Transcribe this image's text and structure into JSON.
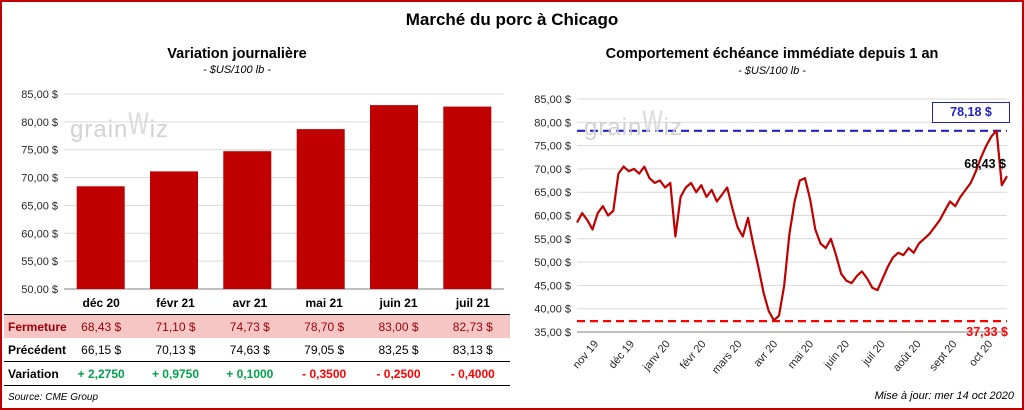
{
  "page": {
    "title": "Marché du porc à Chicago",
    "source": "Source: CME Group",
    "updated": "Mise à jour: mer 14 oct 2020"
  },
  "colors": {
    "brand_red": "#C00000",
    "grid": "#D9D9D9",
    "axis": "#7F7F7F",
    "high_ref_blue": "#2222CC",
    "low_ref_red": "#FF0000",
    "close_row_bg": "#F6C6C5",
    "close_row_text": "#9C0006",
    "positive_green": "#00A14B",
    "negative_red": "#FF0000"
  },
  "watermark": {
    "pre": "grain",
    "mark": "w",
    "post": "iz"
  },
  "chart_data": [
    {
      "type": "bar",
      "title": "Variation  journalière",
      "subtitle": "- $US/100 lb -",
      "categories": [
        "déc 20",
        "févr 21",
        "avr 21",
        "mai 21",
        "juin 21",
        "juil 21"
      ],
      "values": [
        68.43,
        71.1,
        74.73,
        78.7,
        83.0,
        82.73
      ],
      "ylim": [
        50,
        85
      ],
      "ytick_step": 5,
      "ytick_labels": [
        "85,00 $",
        "80,00 $",
        "75,00 $",
        "70,00 $",
        "65,00 $",
        "60,00 $",
        "55,00 $",
        "50,00 $"
      ],
      "bar_color": "#C00000",
      "grid": true,
      "legend": "none"
    },
    {
      "type": "line",
      "title": "Comportement  échéance  immédiate  depuis 1 an",
      "subtitle": "- $US/100 lb -",
      "x_labels": [
        "nov 19",
        "déc 19",
        "janv 20",
        "févr 20",
        "mars 20",
        "avr 20",
        "mai 20",
        "juin 20",
        "juil 20",
        "août 20",
        "sept 20",
        "oct 20"
      ],
      "points_per_month": 7,
      "values": [
        58.5,
        60.5,
        59.0,
        57.0,
        60.5,
        62.0,
        60.0,
        61.0,
        69.0,
        70.5,
        69.5,
        70.0,
        69.0,
        70.5,
        68.0,
        67.0,
        67.5,
        66.0,
        67.0,
        55.5,
        64.0,
        66.0,
        67.0,
        65.0,
        66.5,
        64.0,
        65.5,
        63.0,
        64.5,
        66.0,
        61.5,
        57.5,
        55.5,
        59.5,
        54.0,
        49.0,
        43.5,
        39.5,
        37.5,
        38.5,
        45.0,
        56.0,
        63.0,
        67.5,
        68.0,
        63.5,
        57.0,
        54.0,
        53.0,
        55.0,
        51.5,
        47.5,
        46.0,
        45.5,
        47.0,
        48.0,
        46.5,
        44.5,
        44.0,
        46.5,
        49.0,
        51.0,
        52.0,
        51.5,
        53.0,
        52.0,
        54.0,
        55.0,
        56.0,
        57.5,
        59.0,
        61.0,
        63.0,
        62.0,
        64.0,
        65.5,
        67.0,
        69.5,
        72.5,
        75.0,
        77.0,
        78.2,
        66.5,
        68.43
      ],
      "ylim": [
        35,
        85
      ],
      "ytick_step": 5,
      "ytick_labels": [
        "85,00 $",
        "80,00 $",
        "75,00 $",
        "70,00 $",
        "65,00 $",
        "60,00 $",
        "55,00 $",
        "50,00 $",
        "45,00 $",
        "40,00 $",
        "35,00 $"
      ],
      "line_color": "#C00000",
      "grid": true,
      "legend": "none",
      "ref_lines": [
        {
          "value": 78.18,
          "label": "78,18 $",
          "color": "#2222CC",
          "style": "dashed"
        },
        {
          "value": 37.33,
          "label": "37,33 $",
          "color": "#FF0000",
          "style": "dashed"
        }
      ],
      "last_label": {
        "value": 68.43,
        "label": "68,43 $",
        "color": "#000000"
      }
    }
  ],
  "table": {
    "columns": [
      "déc 20",
      "févr 21",
      "avr 21",
      "mai 21",
      "juin 21",
      "juil 21"
    ],
    "rows": [
      {
        "label": "Fermeture",
        "style": "close",
        "values": [
          "68,43  $",
          "71,10  $",
          "74,73  $",
          "78,70  $",
          "83,00  $",
          "82,73  $"
        ]
      },
      {
        "label": "Précédent",
        "style": "previous",
        "values": [
          "66,15  $",
          "70,13  $",
          "74,63  $",
          "79,05  $",
          "83,25  $",
          "83,13  $"
        ]
      },
      {
        "label": "Variation",
        "style": "variation",
        "values": [
          "+ 2,2750",
          "+ 0,9750",
          "+ 0,1000",
          "- 0,3500",
          "- 0,2500",
          "- 0,4000"
        ],
        "value_signs": [
          "pos",
          "pos",
          "pos",
          "neg",
          "neg",
          "neg"
        ]
      }
    ]
  }
}
